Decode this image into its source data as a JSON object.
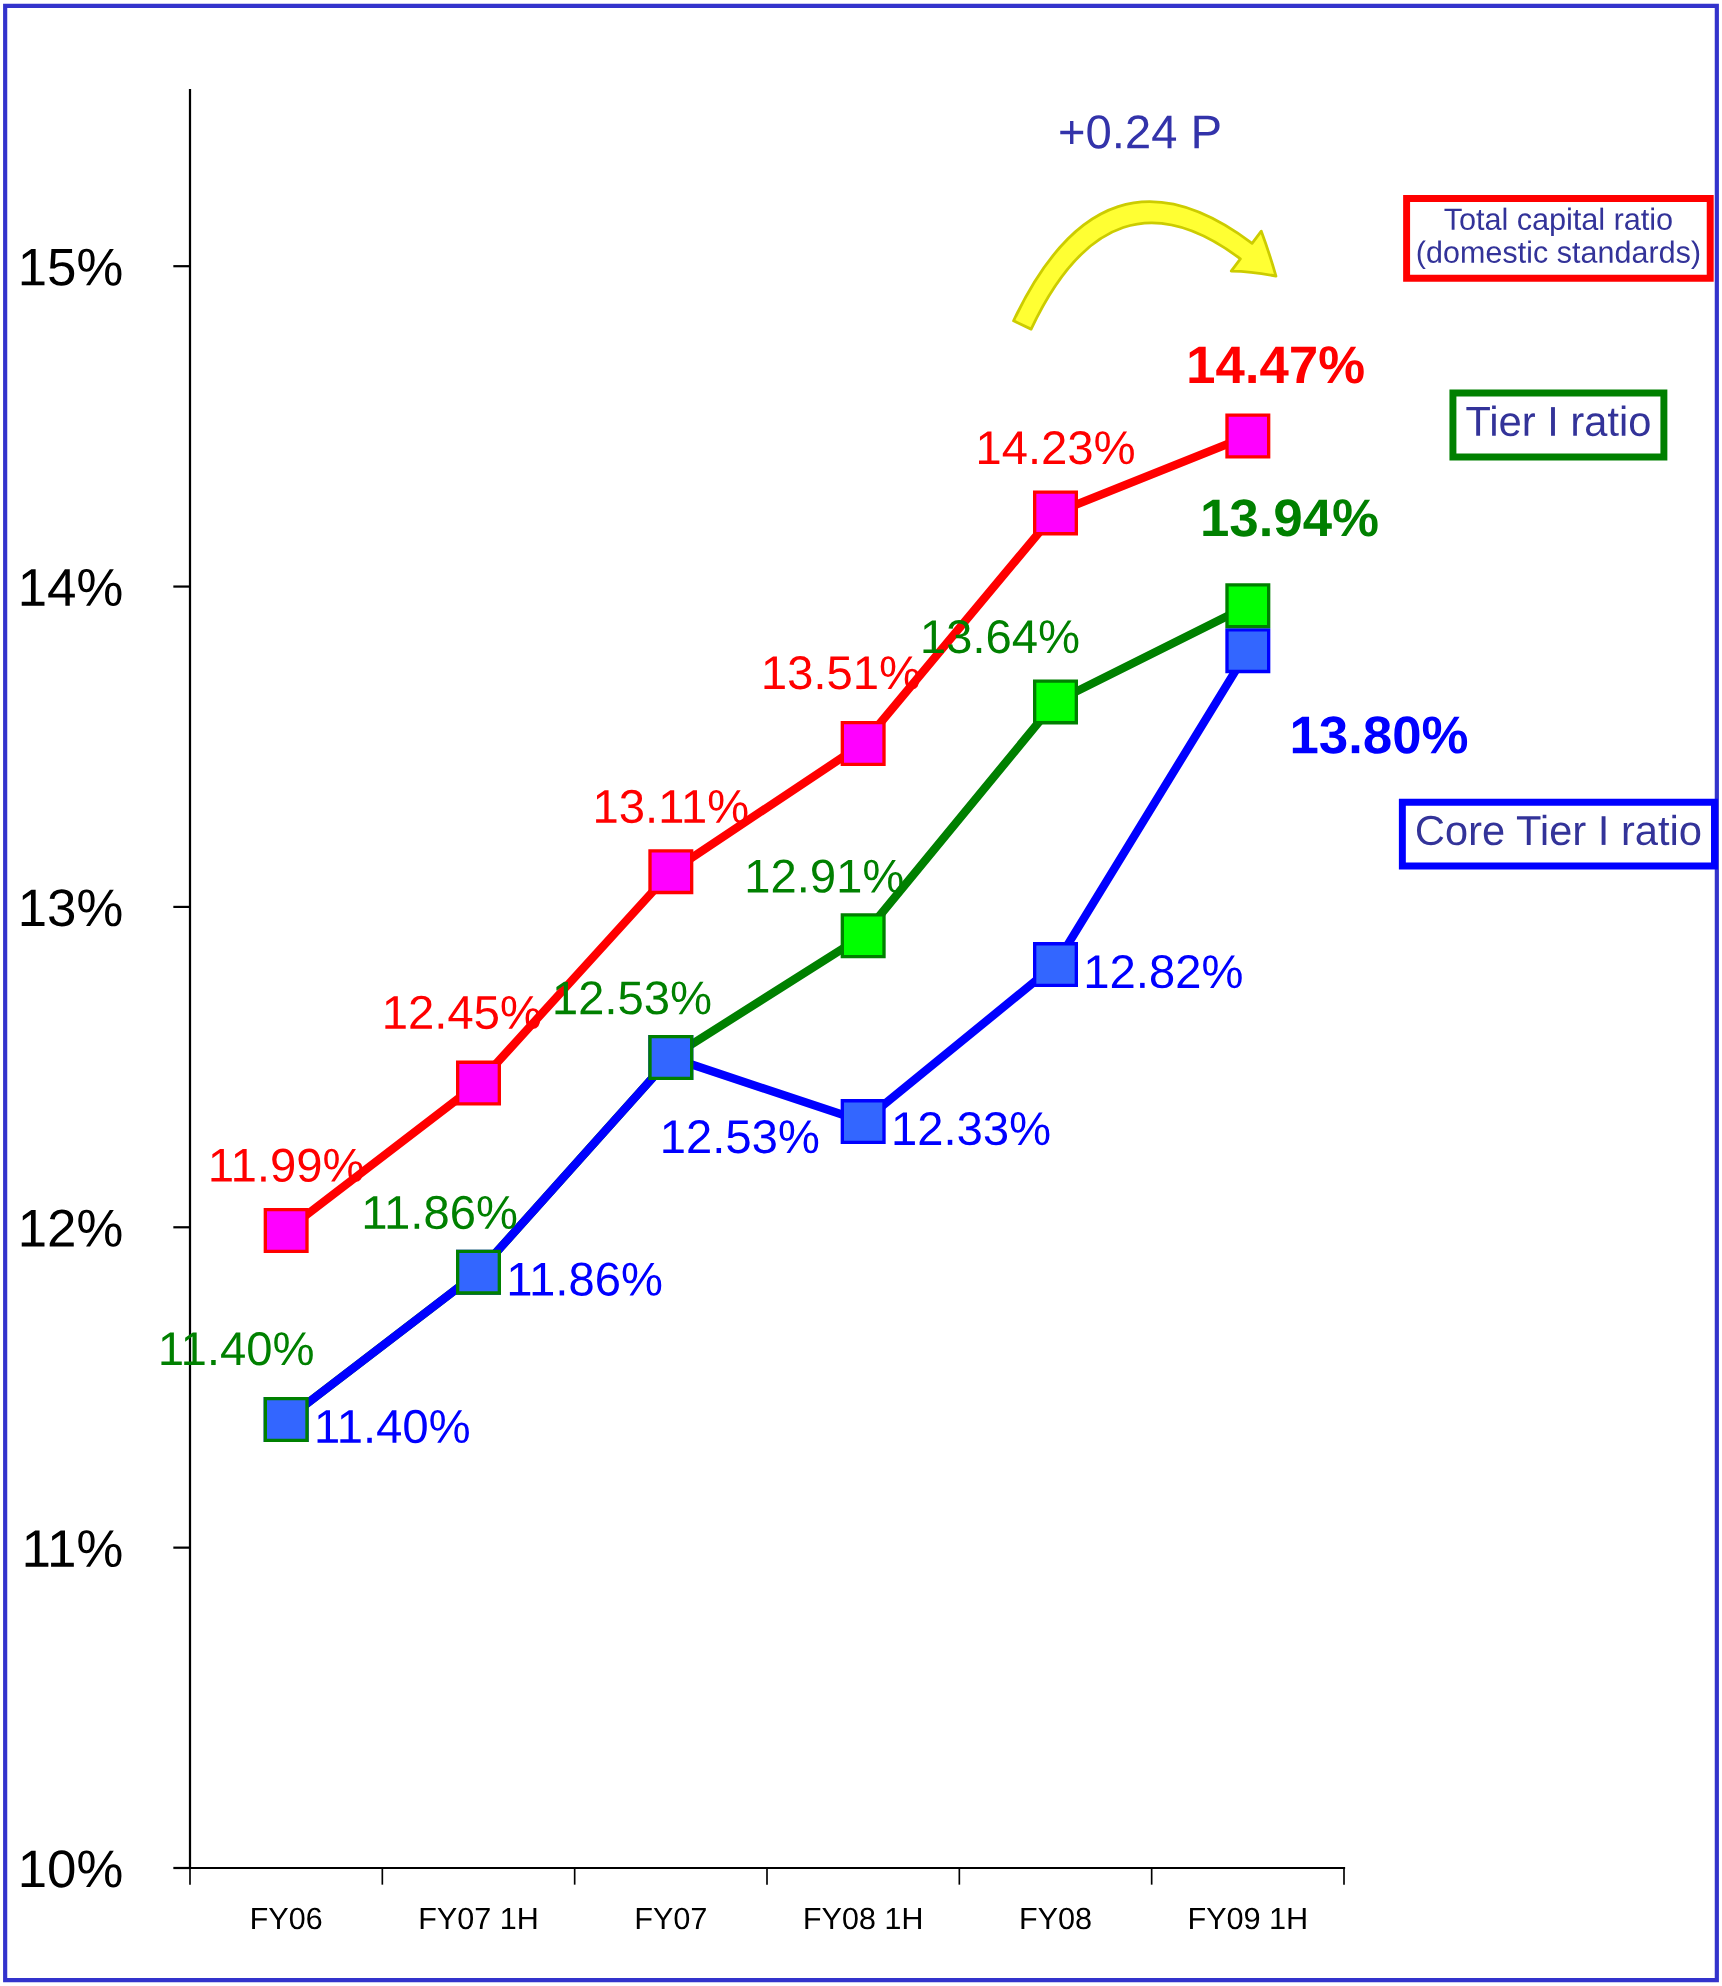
{
  "chart_data": {
    "type": "line",
    "categories": [
      "FY06",
      "FY07 1H",
      "FY07",
      "FY08 1H",
      "FY08",
      "FY09 1H"
    ],
    "series": [
      {
        "name": "Total capital ratio (domestic standards)",
        "color": "#ff0000",
        "colors": [
          "#ff00ff",
          "#ff00ff",
          "#ff00ff",
          "#ff00ff",
          "#ff00ff",
          "#ff00ff"
        ],
        "values": [
          11.99,
          12.45,
          13.11,
          13.51,
          14.23,
          14.47
        ],
        "value_labels": [
          "11.99%",
          "12.45%",
          "13.11%",
          "13.51%",
          "14.23%",
          "14.47%"
        ]
      },
      {
        "name": "Tier I ratio",
        "color": "#008000",
        "colors": [
          "#3366ff",
          "#3366ff",
          "#3366ff",
          "#00ff00",
          "#00ff00",
          "#00ff00"
        ],
        "values": [
          11.4,
          11.86,
          12.53,
          12.91,
          13.64,
          13.94
        ],
        "value_labels": [
          "11.40%",
          "11.86%",
          "12.53%",
          "12.91%",
          "13.64%",
          "13.94%"
        ]
      },
      {
        "name": "Core Tier I ratio",
        "color": "#0000ff",
        "colors": [
          "#3366ff",
          "#3366ff",
          "#3366ff",
          "#3366ff",
          "#3366ff",
          "#3366ff"
        ],
        "values": [
          11.4,
          11.86,
          12.53,
          12.33,
          12.82,
          13.8
        ],
        "value_labels": [
          "11.40%",
          "11.86%",
          "12.53%",
          "12.33%",
          "12.82%",
          "13.80%"
        ]
      }
    ],
    "ylim": [
      10,
      15.55
    ],
    "yticks": [
      {
        "value": 10,
        "label": "10%"
      },
      {
        "value": 11,
        "label": "11%"
      },
      {
        "value": 12,
        "label": "12%"
      },
      {
        "value": 13,
        "label": "13%"
      },
      {
        "value": 14,
        "label": "14%"
      },
      {
        "value": 15,
        "label": "15%"
      }
    ],
    "marker": "square",
    "line_style": "solid",
    "grid": false,
    "legend": "right",
    "annotations": [
      "+0.24 P"
    ]
  }
}
